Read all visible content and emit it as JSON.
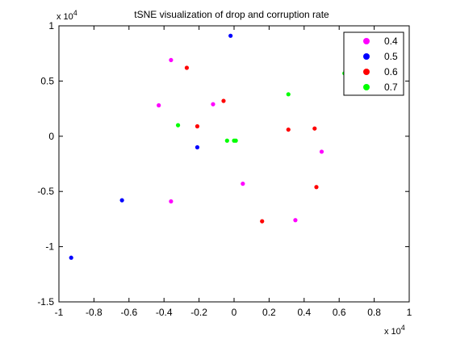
{
  "chart_data": {
    "type": "scatter",
    "title": "tSNE visualization of drop and corruption rate",
    "xlabel": "",
    "ylabel": "",
    "x_exponent_label": "x 10",
    "x_exponent_power": "4",
    "y_exponent_label": "x 10",
    "y_exponent_power": "4",
    "xlim": [
      -10000,
      10000
    ],
    "ylim": [
      -15000,
      10000
    ],
    "x_ticks": [
      -10000,
      -8000,
      -6000,
      -4000,
      -2000,
      0,
      2000,
      4000,
      6000,
      8000,
      10000
    ],
    "x_tick_labels": [
      "-1",
      "-0.8",
      "-0.6",
      "-0.4",
      "-0.2",
      "0",
      "0.2",
      "0.4",
      "0.6",
      "0.8",
      "1"
    ],
    "y_ticks": [
      -15000,
      -10000,
      -5000,
      0,
      5000,
      10000
    ],
    "y_tick_labels": [
      "-1.5",
      "-1",
      "-0.5",
      "0",
      "0.5",
      "1"
    ],
    "grid": false,
    "legend_position": "top-right",
    "series": [
      {
        "name": "0.4",
        "color": "#ff00ff",
        "points": [
          {
            "x": -3600,
            "y": 6900
          },
          {
            "x": -4300,
            "y": 2800
          },
          {
            "x": -1200,
            "y": 2900
          },
          {
            "x": 500,
            "y": -4300
          },
          {
            "x": 5000,
            "y": -1400
          },
          {
            "x": -3600,
            "y": -5900
          },
          {
            "x": 3500,
            "y": -7600
          }
        ]
      },
      {
        "name": "0.5",
        "color": "#0000ff",
        "points": [
          {
            "x": -200,
            "y": 9100
          },
          {
            "x": -2100,
            "y": -1000
          },
          {
            "x": -6400,
            "y": -5800
          },
          {
            "x": -9300,
            "y": -11000
          }
        ]
      },
      {
        "name": "0.6",
        "color": "#ff0000",
        "points": [
          {
            "x": -2700,
            "y": 6200
          },
          {
            "x": -600,
            "y": 3200
          },
          {
            "x": -2100,
            "y": 900
          },
          {
            "x": 3100,
            "y": 600
          },
          {
            "x": 4600,
            "y": 700
          },
          {
            "x": 4700,
            "y": -4600
          },
          {
            "x": 1600,
            "y": -7700
          }
        ]
      },
      {
        "name": "0.7",
        "color": "#00ff00",
        "points": [
          {
            "x": 3100,
            "y": 3800
          },
          {
            "x": 6300,
            "y": 5700
          },
          {
            "x": -3200,
            "y": 1000
          },
          {
            "x": -400,
            "y": -400
          },
          {
            "x": 0,
            "y": -400
          },
          {
            "x": 100,
            "y": -400
          }
        ]
      }
    ]
  }
}
